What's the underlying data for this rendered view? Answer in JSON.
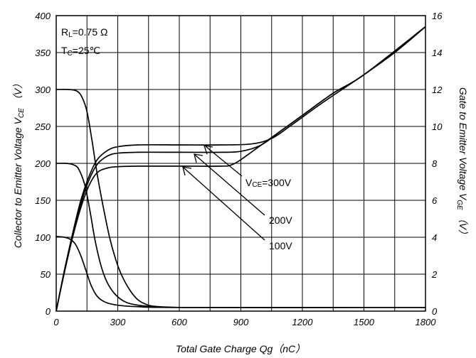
{
  "chart_data": {
    "type": "line",
    "xlabel": "Total Gate Charge Qg（nC）",
    "ylabel_left": "Collector to Emitter Voltage V",
    "ylabel_left_sub": "CE",
    "ylabel_left_unit": "（V）",
    "ylabel_right": "Gate to Emitter Voltage V",
    "ylabel_right_sub": "GE",
    "ylabel_right_unit": "（V）",
    "xlim": [
      0,
      1800
    ],
    "ylim_left": [
      0,
      400
    ],
    "ylim_right": [
      0,
      16
    ],
    "x_ticks": [
      "0",
      "300",
      "600",
      "900",
      "1200",
      "1500",
      "1800"
    ],
    "y_left_ticks": [
      "0",
      "50",
      "100",
      "150",
      "200",
      "250",
      "300",
      "350",
      "400"
    ],
    "y_right_ticks": [
      "0",
      "2",
      "4",
      "6",
      "8",
      "10",
      "12",
      "14",
      "16"
    ],
    "grid": true,
    "conditions": {
      "rl_main": "R",
      "rl_sub": "L",
      "rl_value": "=0.75 Ω",
      "tc_main": "T",
      "tc_sub": "C",
      "tc_value": "=25℃"
    },
    "annotations": {
      "vce_main": "V",
      "vce_sub": "CE",
      "vce_value": "=300V",
      "v200": "200V",
      "v100": "100V"
    },
    "series": [
      {
        "axis": "left",
        "condition": "VCE=300V",
        "points": [
          [
            0,
            300
          ],
          [
            60,
            300
          ],
          [
            100,
            298
          ],
          [
            125,
            290
          ],
          [
            150,
            270
          ],
          [
            175,
            230
          ],
          [
            200,
            185
          ],
          [
            230,
            140
          ],
          [
            260,
            100
          ],
          [
            290,
            70
          ],
          [
            320,
            48
          ],
          [
            360,
            28
          ],
          [
            400,
            15
          ],
          [
            450,
            8
          ],
          [
            500,
            6
          ],
          [
            600,
            5
          ],
          [
            800,
            5
          ],
          [
            1200,
            5
          ],
          [
            1800,
            5
          ]
        ]
      },
      {
        "axis": "left",
        "condition": "VCE=200V",
        "points": [
          [
            0,
            200
          ],
          [
            50,
            200
          ],
          [
            85,
            198
          ],
          [
            110,
            192
          ],
          [
            140,
            170
          ],
          [
            165,
            135
          ],
          [
            190,
            95
          ],
          [
            220,
            60
          ],
          [
            250,
            38
          ],
          [
            290,
            22
          ],
          [
            340,
            12
          ],
          [
            400,
            8
          ],
          [
            480,
            6
          ],
          [
            600,
            5
          ],
          [
            1800,
            5
          ]
        ]
      },
      {
        "axis": "left",
        "condition": "VCE=100V",
        "points": [
          [
            0,
            101
          ],
          [
            40,
            100
          ],
          [
            70,
            97
          ],
          [
            95,
            90
          ],
          [
            120,
            75
          ],
          [
            145,
            55
          ],
          [
            170,
            35
          ],
          [
            200,
            20
          ],
          [
            240,
            12
          ],
          [
            300,
            8
          ],
          [
            400,
            6
          ],
          [
            600,
            5
          ],
          [
            1800,
            5
          ]
        ]
      },
      {
        "axis": "right",
        "condition": "VCE=300V",
        "points": [
          [
            0,
            0
          ],
          [
            40,
            2.2
          ],
          [
            80,
            4.2
          ],
          [
            120,
            6
          ],
          [
            160,
            7.3
          ],
          [
            200,
            8.2
          ],
          [
            250,
            8.7
          ],
          [
            300,
            8.9
          ],
          [
            400,
            9.0
          ],
          [
            600,
            9.0
          ],
          [
            800,
            9.0
          ],
          [
            950,
            9.05
          ],
          [
            1050,
            9.35
          ],
          [
            1150,
            10.1
          ],
          [
            1300,
            11.3
          ],
          [
            1500,
            12.8
          ],
          [
            1650,
            14.0
          ],
          [
            1800,
            15.4
          ]
        ]
      },
      {
        "axis": "right",
        "condition": "VCE=200V",
        "points": [
          [
            0,
            0
          ],
          [
            40,
            2.2
          ],
          [
            80,
            4.1
          ],
          [
            120,
            5.8
          ],
          [
            160,
            7.1
          ],
          [
            200,
            7.95
          ],
          [
            250,
            8.4
          ],
          [
            300,
            8.55
          ],
          [
            400,
            8.6
          ],
          [
            600,
            8.6
          ],
          [
            800,
            8.6
          ],
          [
            900,
            8.65
          ],
          [
            1000,
            9.0
          ],
          [
            1100,
            9.8
          ],
          [
            1200,
            10.6
          ],
          [
            1350,
            11.8
          ],
          [
            1500,
            12.8
          ],
          [
            1800,
            15.4
          ]
        ]
      },
      {
        "axis": "right",
        "condition": "VCE=100V",
        "points": [
          [
            0,
            0
          ],
          [
            40,
            2.1
          ],
          [
            80,
            4.0
          ],
          [
            120,
            5.6
          ],
          [
            160,
            6.8
          ],
          [
            200,
            7.5
          ],
          [
            250,
            7.75
          ],
          [
            300,
            7.82
          ],
          [
            400,
            7.85
          ],
          [
            600,
            7.85
          ],
          [
            800,
            7.85
          ],
          [
            850,
            7.9
          ],
          [
            900,
            8.2
          ],
          [
            1000,
            9.0
          ],
          [
            1100,
            9.8
          ],
          [
            1200,
            10.6
          ],
          [
            1350,
            11.8
          ],
          [
            1500,
            12.8
          ],
          [
            1800,
            15.4
          ]
        ]
      }
    ]
  }
}
